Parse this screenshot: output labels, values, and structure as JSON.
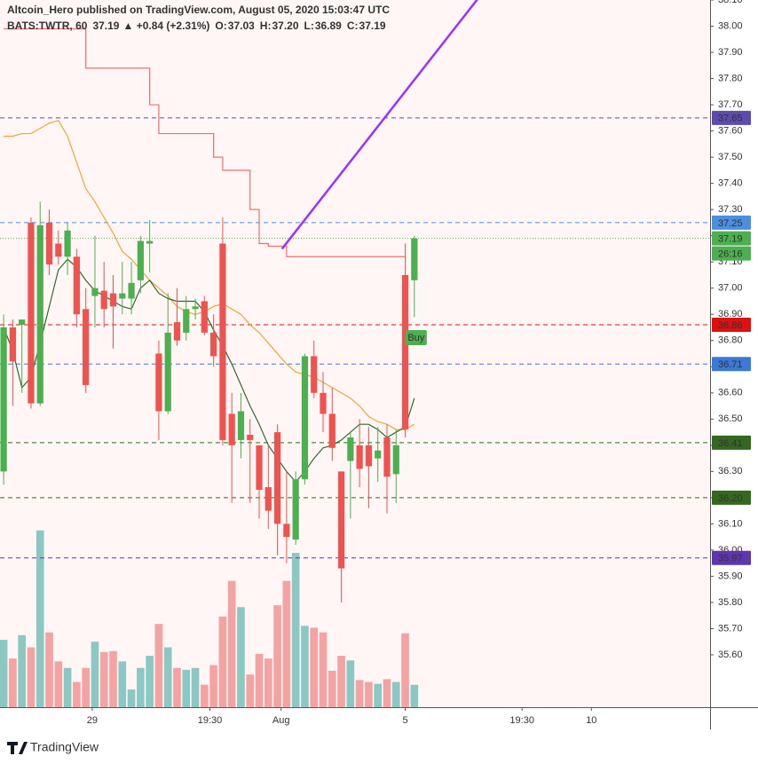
{
  "chart_data": {
    "type": "candlestick",
    "title": "Altcoin_Hero published on TradingView.com, August 05, 2020 15:03:47 UTC",
    "legend": {
      "symbol": "BATS:TWTR, 60",
      "last": "37.19",
      "change": "▲ +0.84 (+2.31%)",
      "fields": [
        {
          "key": "O:",
          "value": "37.03"
        },
        {
          "key": "H:",
          "value": "37.20"
        },
        {
          "key": "L:",
          "value": "36.89"
        },
        {
          "key": "C:",
          "value": "37.19"
        }
      ]
    },
    "open": [
      36.3,
      36.85,
      36.86,
      37.25,
      36.56,
      37.25,
      37.17,
      37.12,
      37.12,
      36.92,
      36.97,
      36.99,
      36.98,
      36.96,
      36.96,
      37.03,
      37.17,
      36.75,
      36.53,
      36.87,
      36.83,
      36.92,
      36.95,
      36.83,
      37.17,
      36.52,
      36.42,
      36.44,
      36.4,
      36.24,
      36.45,
      36.1,
      36.04,
      36.27,
      36.74,
      36.6,
      36.52,
      36.3,
      36.34,
      36.4,
      36.4,
      36.35,
      36.43,
      36.29,
      37.05,
      37.03
    ],
    "high": [
      36.9,
      36.88,
      36.88,
      37.27,
      37.33,
      37.3,
      37.22,
      37.25,
      37.15,
      37.0,
      37.2,
      37.1,
      37.05,
      37.1,
      37.1,
      37.2,
      37.26,
      36.8,
      36.98,
      37.0,
      36.97,
      36.96,
      36.97,
      36.9,
      37.27,
      36.6,
      36.6,
      36.5,
      36.4,
      36.4,
      36.48,
      36.3,
      36.3,
      36.75,
      36.8,
      36.68,
      36.62,
      36.3,
      36.45,
      36.5,
      36.47,
      36.47,
      36.48,
      36.46,
      37.17,
      37.2
    ],
    "low": [
      36.25,
      36.55,
      36.6,
      36.54,
      36.55,
      37.05,
      37.09,
      37.05,
      36.85,
      36.6,
      36.85,
      36.85,
      36.77,
      36.9,
      36.9,
      36.98,
      37.06,
      36.42,
      36.52,
      36.78,
      36.8,
      36.88,
      36.82,
      36.7,
      36.4,
      36.18,
      36.35,
      36.18,
      36.12,
      36.08,
      35.98,
      35.95,
      36.02,
      36.25,
      36.58,
      36.45,
      36.34,
      35.8,
      36.12,
      36.24,
      36.16,
      36.26,
      36.14,
      36.18,
      36.43,
      36.89
    ],
    "close": [
      36.85,
      36.72,
      36.88,
      36.56,
      37.24,
      37.09,
      37.12,
      37.22,
      36.9,
      36.63,
      37.0,
      36.92,
      36.93,
      36.98,
      37.02,
      37.18,
      37.18,
      36.53,
      36.83,
      36.8,
      36.92,
      36.93,
      36.83,
      36.74,
      36.42,
      36.4,
      36.53,
      36.42,
      36.23,
      36.15,
      36.1,
      36.05,
      36.27,
      36.74,
      36.6,
      36.52,
      36.39,
      35.93,
      36.43,
      36.31,
      36.32,
      36.38,
      36.28,
      36.4,
      36.46,
      37.19
    ],
    "volume": [
      72,
      52,
      77,
      64,
      189,
      80,
      49,
      42,
      27,
      42,
      70,
      59,
      60,
      49,
      19,
      42,
      55,
      89,
      64,
      42,
      40,
      42,
      24,
      45,
      97,
      135,
      107,
      35,
      57,
      52,
      109,
      135,
      165,
      87,
      85,
      80,
      39,
      55,
      50,
      29,
      27,
      25,
      30,
      27,
      79,
      24
    ],
    "colors": {
      "up": "#4caf50",
      "down": "#ef5350",
      "volume_up": "#8cc8c3",
      "volume_down": "#f4a3a3"
    },
    "lines": [
      {
        "color": "#f07070",
        "step": true,
        "values": [
          37.99,
          37.99,
          37.99,
          37.99,
          37.99,
          37.99,
          37.99,
          37.99,
          37.99,
          37.84,
          37.84,
          37.84,
          37.84,
          37.84,
          37.84,
          37.84,
          37.7,
          37.59,
          37.59,
          37.59,
          37.59,
          37.59,
          37.59,
          37.5,
          37.45,
          37.45,
          37.45,
          37.3,
          37.17,
          37.16,
          37.16,
          37.12,
          37.12,
          37.12,
          37.12,
          37.12,
          37.12,
          37.12,
          37.12,
          37.12,
          37.12,
          37.12,
          37.12,
          37.12,
          37.12,
          null
        ]
      },
      {
        "color": "#f7a534",
        "values": [
          37.58,
          37.58,
          37.59,
          37.59,
          37.61,
          37.63,
          37.64,
          37.58,
          37.48,
          37.38,
          37.33,
          37.27,
          37.21,
          37.14,
          37.11,
          37.07,
          37.03,
          37.0,
          36.97,
          36.93,
          36.91,
          36.9,
          36.91,
          36.93,
          36.94,
          36.92,
          36.9,
          36.86,
          36.83,
          36.79,
          36.75,
          36.71,
          36.68,
          36.67,
          36.66,
          36.64,
          36.62,
          36.6,
          36.58,
          36.55,
          36.51,
          36.49,
          36.48,
          36.46,
          36.46,
          36.48
        ]
      },
      {
        "color": "#2e6b2e",
        "values": [
          36.85,
          36.76,
          36.62,
          36.66,
          36.79,
          36.93,
          37.07,
          37.11,
          37.08,
          37.03,
          36.99,
          36.97,
          36.95,
          36.93,
          36.92,
          37.0,
          37.03,
          36.98,
          36.96,
          36.95,
          36.95,
          36.95,
          36.91,
          36.84,
          36.78,
          36.71,
          36.63,
          36.55,
          36.48,
          36.4,
          36.35,
          36.3,
          36.26,
          36.3,
          36.35,
          36.39,
          36.4,
          36.42,
          36.45,
          36.48,
          36.48,
          36.46,
          36.43,
          36.45,
          36.47,
          36.58
        ]
      }
    ],
    "trendline": {
      "color": "#9b30ff",
      "x": [
        30.5,
        52.3
      ],
      "y": [
        37.15,
        38.12
      ]
    },
    "levels": [
      {
        "value": 37.65,
        "label": "37.65",
        "color": "#5e4bb0",
        "dash": "5,4"
      },
      {
        "value": 37.25,
        "label": "37.25",
        "color": "#4a8fe0",
        "dash": "5,4"
      },
      {
        "value": 37.19,
        "label": "37.19",
        "color": "#4caf50",
        "dash": "1,2"
      },
      {
        "value": 36.86,
        "label": "36.86",
        "color": "#e01010",
        "dash": "5,4"
      },
      {
        "value": 36.71,
        "label": "36.71",
        "color": "#3c78d8",
        "dash": "5,4"
      },
      {
        "value": 36.41,
        "label": "36.41",
        "color": "#33691e",
        "dash": "5,4"
      },
      {
        "value": 36.2,
        "label": "36.20",
        "color": "#33691e",
        "dash": "5,4"
      },
      {
        "value": 35.97,
        "label": "35.97",
        "color": "#5e35b1",
        "dash": "5,4"
      }
    ],
    "countdown": "26:16",
    "signal": {
      "x": 45,
      "value": 36.86,
      "label": "Buy",
      "color": "#4caf50"
    },
    "xlim": [
      -0.4,
      77.4
    ],
    "xticks": [
      {
        "value": 9.7,
        "label": "29"
      },
      {
        "value": 22.6,
        "label": "19:30"
      },
      {
        "value": 30.4,
        "label": "Aug"
      },
      {
        "value": 44.0,
        "label": "5"
      },
      {
        "value": 56.8,
        "label": "19:30"
      },
      {
        "value": 64.4,
        "label": "10"
      }
    ],
    "ylim": [
      35.4,
      38.1
    ],
    "yticks": [
      {
        "value": 35.6,
        "label": "35.60"
      },
      {
        "value": 35.7,
        "label": "35.70"
      },
      {
        "value": 35.8,
        "label": "35.80"
      },
      {
        "value": 35.9,
        "label": "35.90"
      },
      {
        "value": 36.0,
        "label": "36.00"
      },
      {
        "value": 36.1,
        "label": "36.10"
      },
      {
        "value": 36.2,
        "label": "36.20"
      },
      {
        "value": 36.3,
        "label": "36.30"
      },
      {
        "value": 36.4,
        "label": "36.40"
      },
      {
        "value": 36.5,
        "label": "36.50"
      },
      {
        "value": 36.6,
        "label": "36.60"
      },
      {
        "value": 36.7,
        "label": "36.70"
      },
      {
        "value": 36.8,
        "label": "36.80"
      },
      {
        "value": 36.9,
        "label": "36.90"
      },
      {
        "value": 37.0,
        "label": "37.00"
      },
      {
        "value": 37.1,
        "label": "37.10"
      },
      {
        "value": 37.2,
        "label": "37.20"
      },
      {
        "value": 37.3,
        "label": "37.30"
      },
      {
        "value": 37.4,
        "label": "37.40"
      },
      {
        "value": 37.5,
        "label": "37.50"
      },
      {
        "value": 37.6,
        "label": "37.60"
      },
      {
        "value": 37.7,
        "label": "37.70"
      },
      {
        "value": 37.8,
        "label": "37.80"
      },
      {
        "value": 37.9,
        "label": "37.90"
      },
      {
        "value": 38.0,
        "label": "38.00"
      },
      {
        "value": 38.1,
        "label": "38.10"
      }
    ],
    "footer": "TradingView"
  }
}
